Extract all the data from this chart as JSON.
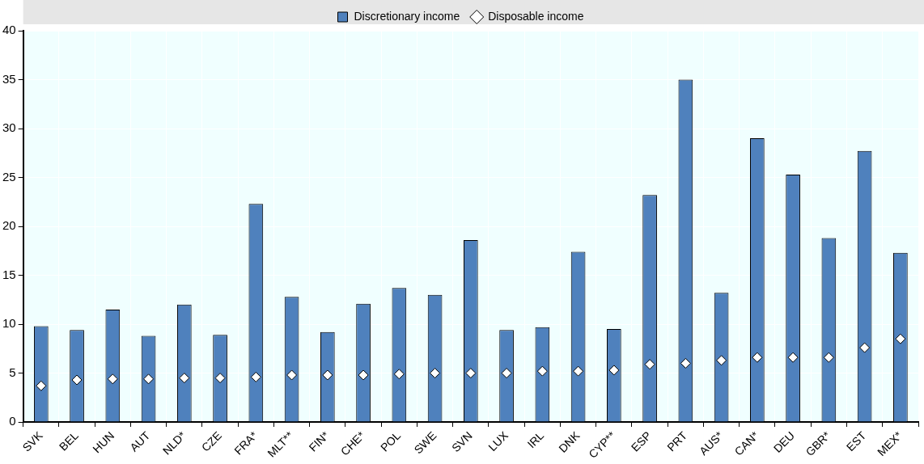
{
  "chart_data": {
    "type": "bar",
    "categories": [
      "SVK",
      "BEL",
      "HUN",
      "AUT",
      "NLD*",
      "CZE",
      "FRA*",
      "MLT**",
      "FIN*",
      "CHE*",
      "POL",
      "SWE",
      "SVN",
      "LUX",
      "IRL",
      "DNK",
      "CYP**",
      "ESP",
      "PRT",
      "AUS*",
      "CAN*",
      "DEU",
      "GBR*",
      "EST",
      "MEX*"
    ],
    "series": [
      {
        "name": "Discretionary income",
        "color": "#4f81bd",
        "values": [
          9.8,
          9.4,
          11.5,
          8.8,
          12.0,
          8.9,
          22.3,
          12.8,
          9.2,
          12.1,
          13.7,
          13.0,
          18.6,
          9.4,
          9.7,
          17.4,
          9.5,
          23.2,
          35.0,
          13.2,
          29.0,
          25.3,
          18.8,
          27.7,
          17.3
        ]
      },
      {
        "name": "Disposable income",
        "type": "scatter",
        "marker": "diamond",
        "color": "#ffffff",
        "x": [
          "SVK",
          "BEL",
          "HUN",
          "AUT",
          "NLD*",
          "CZE",
          "FRA*",
          "MLT**",
          "FIN*",
          "CHE*",
          "POL",
          "SWE",
          "SVN",
          "LUX",
          "IRL",
          "DNK",
          "CYP**",
          "ESP",
          "PRT",
          "AUS*",
          "CAN*",
          "DEU",
          "GBR*",
          "EST",
          "MEX*"
        ],
        "values": [
          3.7,
          4.3,
          4.4,
          4.4,
          4.5,
          4.5,
          4.6,
          4.8,
          4.8,
          4.8,
          4.9,
          5.0,
          5.0,
          5.0,
          5.2,
          5.2,
          5.3,
          5.9,
          6.0,
          6.3,
          6.6,
          6.6,
          6.6,
          7.6,
          8.5
        ]
      }
    ],
    "ylim": [
      0,
      40
    ],
    "yticks": [
      0,
      5,
      10,
      15,
      20,
      25,
      30,
      35,
      40
    ],
    "grid": true,
    "legend": "top"
  }
}
